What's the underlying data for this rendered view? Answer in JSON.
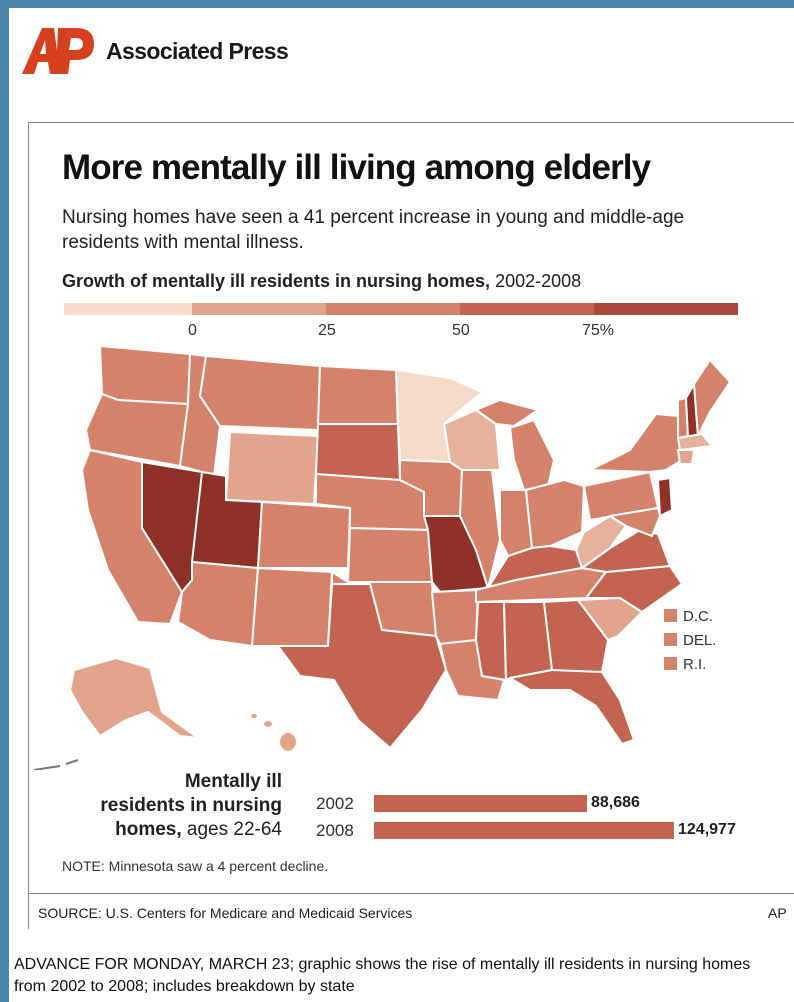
{
  "header": {
    "org_name": "Associated Press",
    "logo_text": "AP"
  },
  "graphic": {
    "title": "More mentally ill living among elderly",
    "subtitle": "Nursing homes have seen a 41 percent increase in young and middle-age residents with mental illness.",
    "map_title_bold": "Growth of mentally ill residents in nursing homes,",
    "map_title_years": " 2002-2008"
  },
  "scale": {
    "ticks": [
      "0",
      "25",
      "50",
      "75%"
    ],
    "colors": [
      "#f6d9c9",
      "#e2a58c",
      "#d5826a",
      "#c26450",
      "#a9473a",
      "#8e3127"
    ]
  },
  "map_legend": [
    {
      "label": "D.C."
    },
    {
      "label": "DEL."
    },
    {
      "label": "R.I."
    }
  ],
  "chart_data": {
    "type": "bar",
    "title": "Mentally ill residents in nursing homes, ages 22-64",
    "categories": [
      "2002",
      "2008"
    ],
    "values": [
      88686,
      124977
    ],
    "value_labels": [
      "88,686",
      "124,977"
    ]
  },
  "bar_label": {
    "line1": "Mentally ill",
    "line2": "residents in nursing",
    "line3_bold": "homes,",
    "line3_rest": " ages 22-64"
  },
  "note": "NOTE: Minnesota saw a 4 percent decline.",
  "source": "SOURCE: U.S. Centers for Medicare and Medicaid Services",
  "credit": "AP",
  "caption": "ADVANCE FOR MONDAY, MARCH 23; graphic shows the rise of mentally ill residents in nursing homes from 2002 to 2008; includes breakdown by state"
}
